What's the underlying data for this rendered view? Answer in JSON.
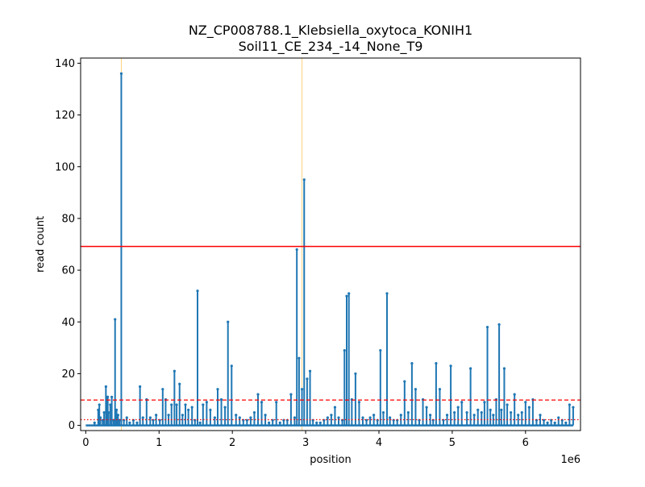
{
  "chart_data": {
    "type": "bar",
    "title": "NZ_CP008788.1_Klebsiella_oxytoca_KONIH1",
    "subtitle": "Soil11_CE_234_-14_None_T9",
    "xlabel": "position",
    "ylabel": "read count",
    "x_offset_label": "1e6",
    "x_tick_values": [
      0,
      1000000,
      2000000,
      3000000,
      4000000,
      5000000,
      6000000
    ],
    "x_tick_labels": [
      "0",
      "1",
      "2",
      "3",
      "4",
      "5",
      "6"
    ],
    "y_tick_values": [
      0,
      20,
      40,
      60,
      80,
      100,
      120,
      140
    ],
    "y_tick_labels": [
      "0",
      "20",
      "40",
      "60",
      "80",
      "100",
      "120",
      "140"
    ],
    "xlim": [
      -70000,
      6750000
    ],
    "ylim": [
      -2,
      142
    ],
    "grid": false,
    "bar_color": "#1f77b4",
    "reference_lines": [
      {
        "value": 69.2,
        "style": "solid",
        "color": "#ff0000"
      },
      {
        "value": 9.8,
        "style": "dashed",
        "color": "#ff0000"
      },
      {
        "value": 2.2,
        "style": "dotted",
        "color": "#ff0000"
      }
    ],
    "highlight_positions": [
      485000,
      2950000
    ],
    "highlight_color": "#ffd27f",
    "series": [
      {
        "x": [
          120000,
          170000,
          185000,
          200000,
          230000,
          250000,
          275000,
          290000,
          300000,
          310000,
          335000,
          355000,
          380000,
          400000,
          420000,
          440000,
          460000,
          485000,
          520000,
          560000,
          600000,
          650000,
          700000,
          740000,
          780000,
          830000,
          880000,
          920000,
          960000,
          1010000,
          1050000,
          1090000,
          1130000,
          1170000,
          1210000,
          1240000,
          1280000,
          1320000,
          1360000,
          1400000,
          1450000,
          1490000,
          1525000,
          1560000,
          1600000,
          1650000,
          1700000,
          1760000,
          1800000,
          1850000,
          1900000,
          1940000,
          1990000,
          2050000,
          2100000,
          2150000,
          2200000,
          2250000,
          2300000,
          2350000,
          2400000,
          2450000,
          2500000,
          2550000,
          2600000,
          2650000,
          2700000,
          2750000,
          2800000,
          2850000,
          2880000,
          2910000,
          2950000,
          2980000,
          3020000,
          3060000,
          3100000,
          3150000,
          3200000,
          3250000,
          3300000,
          3350000,
          3400000,
          3450000,
          3500000,
          3530000,
          3560000,
          3590000,
          3630000,
          3680000,
          3730000,
          3780000,
          3830000,
          3880000,
          3930000,
          3980000,
          4020000,
          4060000,
          4110000,
          4150000,
          4200000,
          4250000,
          4300000,
          4350000,
          4400000,
          4450000,
          4500000,
          4550000,
          4600000,
          4650000,
          4700000,
          4740000,
          4780000,
          4830000,
          4880000,
          4930000,
          4980000,
          5030000,
          5080000,
          5130000,
          5200000,
          5250000,
          5300000,
          5350000,
          5400000,
          5440000,
          5480000,
          5520000,
          5560000,
          5600000,
          5640000,
          5670000,
          5710000,
          5750000,
          5800000,
          5850000,
          5900000,
          5950000,
          6000000,
          6050000,
          6100000,
          6150000,
          6200000,
          6250000,
          6300000,
          6350000,
          6400000,
          6450000,
          6500000,
          6550000,
          6600000,
          6650000
        ],
        "values": [
          1,
          6,
          8,
          3,
          2,
          5,
          15,
          11,
          11,
          5,
          8,
          11,
          2,
          41,
          6,
          4,
          2,
          136,
          2,
          3,
          1,
          2,
          1,
          15,
          3,
          10,
          3,
          2,
          4,
          2,
          14,
          10,
          4,
          8,
          21,
          8,
          16,
          4,
          8,
          6,
          7,
          2,
          52,
          1,
          8,
          9,
          6,
          3,
          14,
          10,
          7,
          40,
          23,
          4,
          3,
          2,
          2,
          3,
          5,
          12,
          9,
          4,
          1,
          2,
          9,
          1,
          2,
          2,
          12,
          3,
          68,
          26,
          14,
          95,
          18,
          21,
          2,
          1,
          1,
          2,
          3,
          4,
          7,
          3,
          2,
          29,
          50,
          51,
          10,
          20,
          9,
          3,
          2,
          3,
          4,
          2,
          29,
          5,
          51,
          3,
          2,
          2,
          4,
          17,
          5,
          24,
          14,
          2,
          10,
          7,
          4,
          2,
          24,
          14,
          2,
          4,
          23,
          5,
          7,
          9,
          5,
          22,
          4,
          6,
          5,
          9,
          38,
          6,
          4,
          10,
          39,
          6,
          22,
          8,
          5,
          12,
          4,
          5,
          9,
          7,
          10,
          2,
          4,
          2,
          1,
          2,
          1,
          3,
          2,
          1,
          8,
          7
        ]
      }
    ]
  }
}
